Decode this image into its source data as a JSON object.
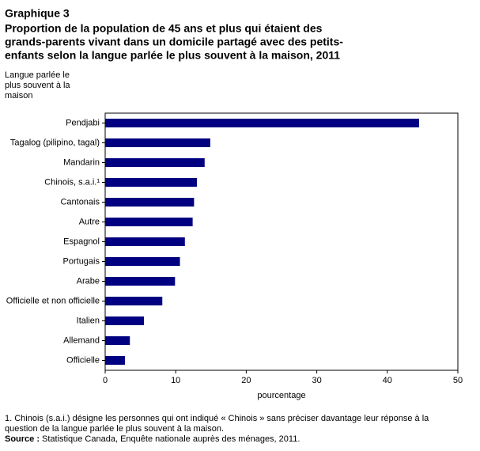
{
  "chart_data": {
    "type": "barh",
    "supertitle": "Graphique 3",
    "title_lines": [
      "Proportion de la population de 45 ans et plus qui étaient des",
      "grands-parents vivant dans un domicile partagé avec des petits-",
      "enfants selon la langue parlée le plus souvent à la maison, 2011"
    ],
    "ylabel_lines": [
      "Langue parlée le",
      "plus souvent à la",
      "maison"
    ],
    "xlabel": "pourcentage",
    "categories": [
      "Pendjabi",
      "Tagalog (pilipino, tagal)",
      "Mandarin",
      "Chinois, s.a.i.¹",
      "Cantonais",
      "Autre",
      "Espagnol",
      "Portugais",
      "Arabe",
      "Officielle et non officielle",
      "Italien",
      "Allemand",
      "Officielle"
    ],
    "values": [
      44.5,
      14.9,
      14.1,
      13.0,
      12.6,
      12.4,
      11.3,
      10.6,
      9.9,
      8.1,
      5.5,
      3.5,
      2.8
    ],
    "color": "#000080",
    "xlim": [
      0,
      50
    ],
    "xticks": [
      0,
      10,
      20,
      30,
      40,
      50
    ],
    "note_lines": [
      "1. Chinois (s.a.i.) désigne les personnes qui ont indiqué « Chinois » sans préciser davantage leur réponse à la",
      "question de la langue parlée le plus souvent à la maison."
    ],
    "source": {
      "label": "Source :",
      "text": "Statistique Canada, Enquête nationale auprès des ménages, 2011."
    }
  }
}
